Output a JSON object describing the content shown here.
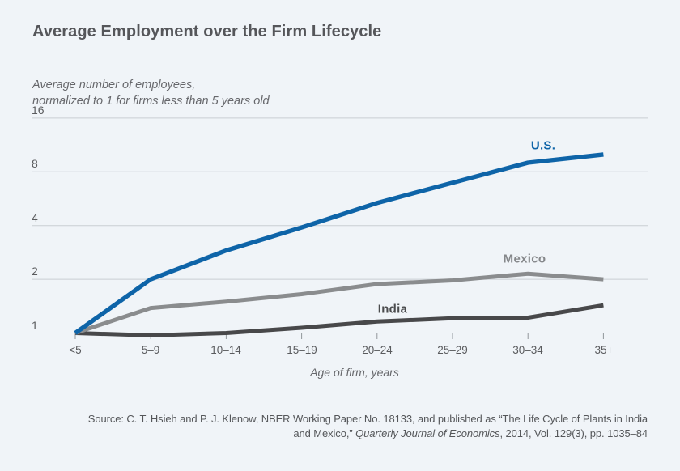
{
  "title": "Average Employment over the Firm Lifecycle",
  "subtitle": {
    "line1": "Average number of employees,",
    "line2": "normalized to 1 for firms less than 5 years old"
  },
  "colors": {
    "background": "#f0f4f8",
    "us_blue": "#0e64a8",
    "mexico_gray": "#8a8c8e",
    "india_dark": "#48484a",
    "gridline": "#c9ced3",
    "axis": "#91969b",
    "title_text": "#55565a",
    "muted_text": "#67686c"
  },
  "chart_data": {
    "type": "line",
    "title": "Average Employment over the Firm Lifecycle",
    "ylabel": "Average number of employees, normalized to 1 for firms less than 5 years old",
    "xlabel": "Age of firm, years",
    "y_scale": "log2",
    "ylim": [
      1,
      16
    ],
    "grid": true,
    "legend_position": "inline-labels",
    "categories": [
      "<5",
      "5–9",
      "10–14",
      "15–19",
      "20–24",
      "25–29",
      "30–34",
      "35+"
    ],
    "ytick_values": [
      1,
      2,
      4,
      8,
      16
    ],
    "ytick_labels_top_to_bottom": [
      "16",
      "8",
      "4",
      "2",
      "1"
    ],
    "series": [
      {
        "name": "India",
        "color": "#48484a",
        "stroke_width": 5,
        "values": [
          1.0,
          0.97,
          1.0,
          1.07,
          1.16,
          1.21,
          1.22,
          1.43
        ]
      },
      {
        "name": "Mexico",
        "color": "#8a8c8e",
        "stroke_width": 5,
        "values": [
          1.0,
          1.38,
          1.5,
          1.65,
          1.88,
          1.97,
          2.15,
          2.0
        ]
      },
      {
        "name": "U.S.",
        "color": "#0e64a8",
        "stroke_width": 5.4,
        "values": [
          1.0,
          2.0,
          2.9,
          3.9,
          5.35,
          6.95,
          9.0,
          10.0
        ]
      }
    ]
  },
  "series_labels": {
    "us": "U.S.",
    "mexico": "Mexico",
    "india": "India"
  },
  "x_axis_title": "Age of firm, years",
  "source": {
    "line1": "Source: C. T. Hsieh and P. J. Klenow, NBER Working Paper No. 18133, and published as “The Life Cycle of Plants in India",
    "line2_pre": "and Mexico,” ",
    "line2_italic": "Quarterly Journal of Economics",
    "line2_post": ", 2014, Vol. 129(3), pp. 1035–84"
  }
}
